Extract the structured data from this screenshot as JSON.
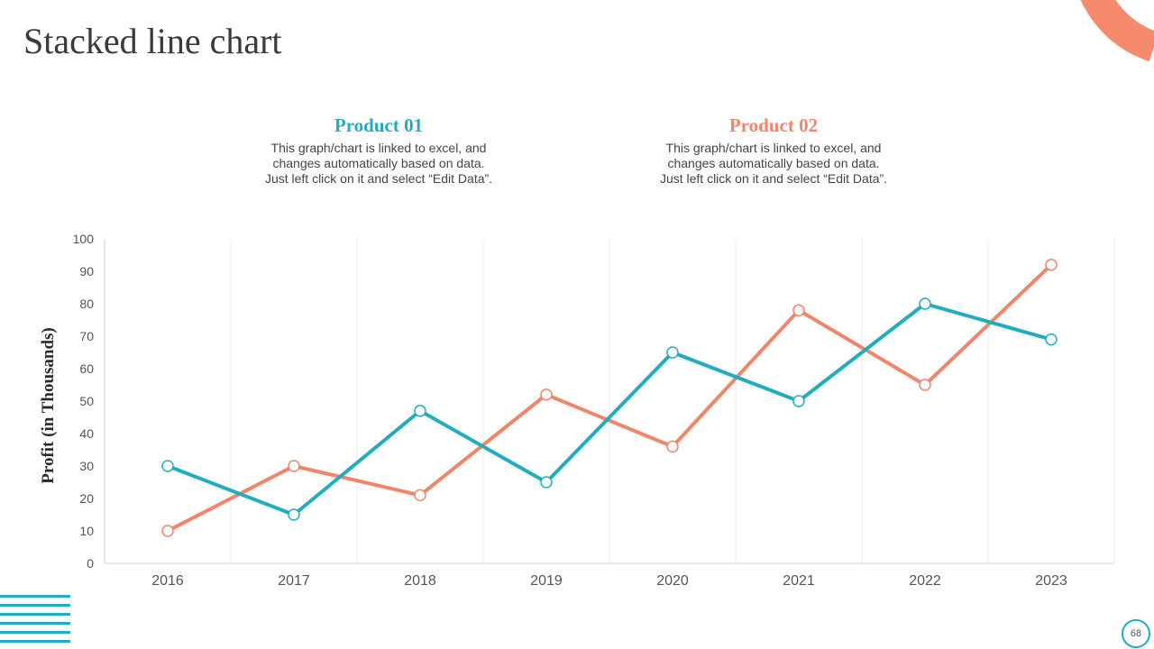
{
  "slide": {
    "title": "Stacked line chart",
    "page_number": "68",
    "colors": {
      "product1": "#21adbf",
      "product2": "#f0856a",
      "accent_arc": "#f58a6c"
    }
  },
  "legend": [
    {
      "name": "Product 01",
      "color": "#21adbf",
      "description": "This graph/chart is linked to excel, and\nchanges automatically based on data.\nJust left click on it and select “Edit Data”."
    },
    {
      "name": "Product 02",
      "color": "#f0856a",
      "description": "This graph/chart is linked to excel, and\nchanges automatically based on data.\nJust left click on it and select “Edit Data”."
    }
  ],
  "chart_data": {
    "type": "line",
    "title": "",
    "xlabel": "",
    "ylabel": "Profit (in Thousands)",
    "categories": [
      "2016",
      "2017",
      "2018",
      "2019",
      "2020",
      "2021",
      "2022",
      "2023"
    ],
    "ylim": [
      0,
      100
    ],
    "yticks": [
      0,
      10,
      20,
      30,
      40,
      50,
      60,
      70,
      80,
      90,
      100
    ],
    "grid": "vertical",
    "series": [
      {
        "name": "Product 01",
        "color": "#21adbf",
        "values": [
          30,
          15,
          47,
          25,
          65,
          50,
          80,
          69
        ]
      },
      {
        "name": "Product 02",
        "color": "#f0856a",
        "values": [
          10,
          30,
          21,
          52,
          36,
          78,
          55,
          92
        ]
      }
    ]
  }
}
